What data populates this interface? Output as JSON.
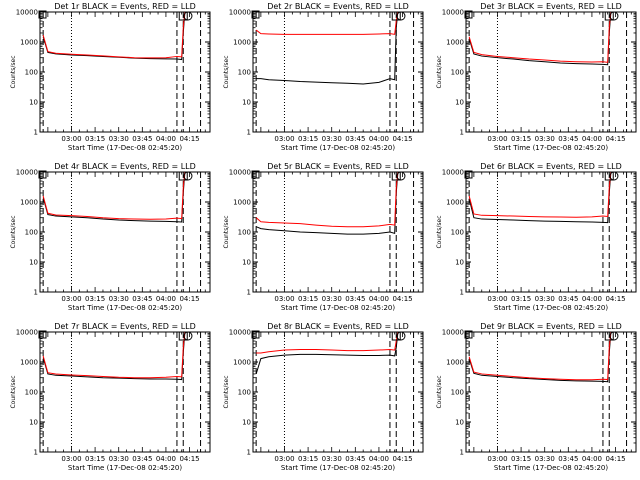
{
  "figure": {
    "xlabel": "Start Time (17-Dec-08 02:45:20)",
    "ylabel": "Counts/sec"
  },
  "chart_data": [
    {
      "type": "line",
      "title": "Det 1r BLACK = Events, RED = LLD",
      "xlabel": "Start Time (17-Dec-08 02:45:20)",
      "ylabel": "Counts/sec",
      "y_scale": "log",
      "ylim": [
        1,
        10000
      ],
      "yticks": [
        "1",
        "10",
        "100",
        "1000",
        "10000"
      ],
      "xtick_labels": [
        "03:00",
        "03:15",
        "03:30",
        "03:45",
        "04:00",
        "04:15"
      ],
      "x_range_minutes": [
        -5,
        103
      ],
      "x": [
        -3,
        0,
        5,
        15,
        25,
        35,
        45,
        55,
        65,
        75,
        82,
        85,
        86,
        87
      ],
      "series": [
        {
          "name": "BLACK = Events",
          "color": "#000000",
          "values": [
            1500,
            450,
            400,
            370,
            350,
            330,
            310,
            290,
            280,
            275,
            270,
            260,
            2000,
            9000
          ]
        },
        {
          "name": "RED = LLD",
          "color": "#ff0000",
          "values": [
            1700,
            480,
            420,
            390,
            370,
            345,
            320,
            300,
            295,
            300,
            330,
            320,
            3000,
            10000
          ]
        }
      ],
      "vlines_dotted": [
        15
      ],
      "vlines_dashed": [
        -3,
        82,
        86,
        97
      ],
      "markers": [
        "square",
        "circle"
      ]
    },
    {
      "type": "line",
      "title": "Det 2r BLACK = Events, RED = LLD",
      "xlabel": "Start Time (17-Dec-08 02:45:20)",
      "ylabel": "Counts/sec",
      "y_scale": "log",
      "ylim": [
        1,
        10000
      ],
      "yticks": [
        "1",
        "10",
        "100",
        "1000",
        "10000"
      ],
      "xtick_labels": [
        "03:00",
        "03:15",
        "03:30",
        "03:45",
        "04:00",
        "04:15"
      ],
      "x_range_minutes": [
        -5,
        103
      ],
      "x": [
        -3,
        0,
        5,
        15,
        25,
        35,
        45,
        55,
        65,
        75,
        82,
        85,
        86,
        87
      ],
      "series": [
        {
          "name": "BLACK = Events",
          "color": "#000000",
          "values": [
            60,
            60,
            55,
            52,
            48,
            46,
            44,
            42,
            40,
            45,
            60,
            55,
            3000,
            10000
          ]
        },
        {
          "name": "RED = LLD",
          "color": "#ff0000",
          "values": [
            2500,
            1900,
            1850,
            1800,
            1800,
            1800,
            1800,
            1800,
            1800,
            1850,
            1900,
            1800,
            5000,
            10000
          ]
        }
      ],
      "vlines_dotted": [
        15
      ],
      "vlines_dashed": [
        -3,
        82,
        86,
        97
      ],
      "markers": [
        "square",
        "circle"
      ]
    },
    {
      "type": "line",
      "title": "Det 3r BLACK = Events, RED = LLD",
      "xlabel": "Start Time (17-Dec-08 02:45:20)",
      "ylabel": "Counts/sec",
      "y_scale": "log",
      "ylim": [
        1,
        10000
      ],
      "yticks": [
        "1",
        "10",
        "100",
        "1000",
        "10000"
      ],
      "xtick_labels": [
        "03:00",
        "03:15",
        "03:30",
        "03:45",
        "04:00",
        "04:15"
      ],
      "x_range_minutes": [
        -5,
        103
      ],
      "x": [
        -3,
        0,
        5,
        15,
        25,
        35,
        45,
        55,
        65,
        75,
        82,
        85,
        86,
        87
      ],
      "series": [
        {
          "name": "BLACK = Events",
          "color": "#000000",
          "values": [
            1300,
            400,
            340,
            300,
            270,
            240,
            220,
            200,
            190,
            185,
            180,
            175,
            2000,
            9000
          ]
        },
        {
          "name": "RED = LLD",
          "color": "#ff0000",
          "values": [
            1500,
            450,
            380,
            330,
            300,
            270,
            250,
            230,
            220,
            215,
            220,
            210,
            3000,
            10000
          ]
        }
      ],
      "vlines_dotted": [
        15
      ],
      "vlines_dashed": [
        -3,
        82,
        86,
        97
      ],
      "markers": [
        "square",
        "circle"
      ]
    },
    {
      "type": "line",
      "title": "Det 4r BLACK = Events, RED = LLD",
      "xlabel": "Start Time (17-Dec-08 02:45:20)",
      "ylabel": "Counts/sec",
      "y_scale": "log",
      "ylim": [
        1,
        10000
      ],
      "yticks": [
        "1",
        "10",
        "100",
        "1000",
        "10000"
      ],
      "xtick_labels": [
        "03:00",
        "03:15",
        "03:30",
        "03:45",
        "04:00",
        "04:15"
      ],
      "x_range_minutes": [
        -5,
        103
      ],
      "x": [
        -3,
        0,
        5,
        15,
        25,
        35,
        45,
        55,
        65,
        75,
        82,
        85,
        86,
        87
      ],
      "series": [
        {
          "name": "BLACK = Events",
          "color": "#000000",
          "values": [
            1400,
            380,
            340,
            320,
            300,
            270,
            250,
            240,
            230,
            225,
            220,
            215,
            2000,
            9000
          ]
        },
        {
          "name": "RED = LLD",
          "color": "#ff0000",
          "values": [
            1600,
            420,
            370,
            350,
            330,
            300,
            280,
            270,
            265,
            270,
            290,
            280,
            3000,
            10000
          ]
        }
      ],
      "vlines_dotted": [
        15
      ],
      "vlines_dashed": [
        -3,
        82,
        86,
        97
      ],
      "markers": [
        "square",
        "circle"
      ]
    },
    {
      "type": "line",
      "title": "Det 5r BLACK = Events, RED = LLD",
      "xlabel": "Start Time (17-Dec-08 02:45:20)",
      "ylabel": "Counts/sec",
      "y_scale": "log",
      "ylim": [
        1,
        10000
      ],
      "yticks": [
        "1",
        "10",
        "100",
        "1000",
        "10000"
      ],
      "xtick_labels": [
        "03:00",
        "03:15",
        "03:30",
        "03:45",
        "04:00",
        "04:15"
      ],
      "x_range_minutes": [
        -5,
        103
      ],
      "x": [
        -3,
        0,
        5,
        15,
        25,
        35,
        45,
        55,
        65,
        75,
        82,
        85,
        86,
        87
      ],
      "series": [
        {
          "name": "BLACK = Events",
          "color": "#000000",
          "values": [
            150,
            130,
            120,
            110,
            100,
            95,
            90,
            85,
            85,
            90,
            100,
            90,
            2000,
            9000
          ]
        },
        {
          "name": "RED = LLD",
          "color": "#ff0000",
          "values": [
            300,
            220,
            210,
            200,
            190,
            170,
            155,
            150,
            150,
            160,
            180,
            170,
            3000,
            10000
          ]
        }
      ],
      "vlines_dotted": [
        15
      ],
      "vlines_dashed": [
        -3,
        82,
        86,
        97
      ],
      "markers": [
        "square",
        "circle"
      ]
    },
    {
      "type": "line",
      "title": "Det 6r BLACK = Events, RED = LLD",
      "xlabel": "Start Time (17-Dec-08 02:45:20)",
      "ylabel": "Counts/sec",
      "y_scale": "log",
      "ylim": [
        1,
        10000
      ],
      "yticks": [
        "1",
        "10",
        "100",
        "1000",
        "10000"
      ],
      "xtick_labels": [
        "03:00",
        "03:15",
        "03:30",
        "03:45",
        "04:00",
        "04:15"
      ],
      "x_range_minutes": [
        -5,
        103
      ],
      "x": [
        -3,
        0,
        5,
        15,
        25,
        35,
        45,
        55,
        65,
        75,
        82,
        85,
        86,
        87
      ],
      "series": [
        {
          "name": "BLACK = Events",
          "color": "#000000",
          "values": [
            1300,
            300,
            270,
            260,
            250,
            240,
            230,
            225,
            220,
            215,
            210,
            205,
            2000,
            9000
          ]
        },
        {
          "name": "RED = LLD",
          "color": "#ff0000",
          "values": [
            1600,
            400,
            360,
            350,
            340,
            330,
            320,
            315,
            310,
            320,
            340,
            330,
            3000,
            10000
          ]
        }
      ],
      "vlines_dotted": [
        15
      ],
      "vlines_dashed": [
        -3,
        82,
        86,
        97
      ],
      "markers": [
        "square",
        "circle"
      ]
    },
    {
      "type": "line",
      "title": "Det 7r BLACK = Events, RED = LLD",
      "xlabel": "Start Time (17-Dec-08 02:45:20)",
      "ylabel": "Counts/sec",
      "y_scale": "log",
      "ylim": [
        1,
        10000
      ],
      "yticks": [
        "1",
        "10",
        "100",
        "1000",
        "10000"
      ],
      "xtick_labels": [
        "03:00",
        "03:15",
        "03:30",
        "03:45",
        "04:00",
        "04:15"
      ],
      "x_range_minutes": [
        -5,
        103
      ],
      "x": [
        -3,
        0,
        5,
        15,
        25,
        35,
        45,
        55,
        65,
        75,
        82,
        85,
        86,
        87
      ],
      "series": [
        {
          "name": "BLACK = Events",
          "color": "#000000",
          "values": [
            1400,
            400,
            360,
            340,
            320,
            300,
            290,
            280,
            270,
            270,
            265,
            260,
            2000,
            9000
          ]
        },
        {
          "name": "RED = LLD",
          "color": "#ff0000",
          "values": [
            1600,
            440,
            400,
            370,
            350,
            330,
            310,
            300,
            300,
            310,
            330,
            320,
            3000,
            10000
          ]
        }
      ],
      "vlines_dotted": [
        15
      ],
      "vlines_dashed": [
        -3,
        82,
        86,
        97
      ],
      "markers": [
        "square",
        "circle"
      ]
    },
    {
      "type": "line",
      "title": "Det 8r BLACK = Events, RED = LLD",
      "xlabel": "Start Time (17-Dec-08 02:45:20)",
      "ylabel": "Counts/sec",
      "y_scale": "log",
      "ylim": [
        1,
        10000
      ],
      "yticks": [
        "1",
        "10",
        "100",
        "1000",
        "10000"
      ],
      "xtick_labels": [
        "03:00",
        "03:15",
        "03:30",
        "03:45",
        "04:00",
        "04:15"
      ],
      "x_range_minutes": [
        -5,
        103
      ],
      "x": [
        -3,
        0,
        5,
        15,
        25,
        35,
        45,
        55,
        65,
        75,
        82,
        85,
        86,
        87
      ],
      "series": [
        {
          "name": "BLACK = Events",
          "color": "#000000",
          "values": [
            400,
            1300,
            1500,
            1700,
            1800,
            1800,
            1750,
            1700,
            1650,
            1650,
            1700,
            1600,
            3000,
            9000
          ]
        },
        {
          "name": "RED = LLD",
          "color": "#ff0000",
          "values": [
            2000,
            2000,
            2200,
            2500,
            2600,
            2600,
            2500,
            2400,
            2400,
            2500,
            2600,
            2500,
            5000,
            10000
          ]
        }
      ],
      "vlines_dotted": [
        15
      ],
      "vlines_dashed": [
        -3,
        82,
        86,
        97
      ],
      "markers": [
        "square",
        "circle"
      ]
    },
    {
      "type": "line",
      "title": "Det 9r BLACK = Events, RED = LLD",
      "xlabel": "Start Time (17-Dec-08 02:45:20)",
      "ylabel": "Counts/sec",
      "y_scale": "log",
      "ylim": [
        1,
        10000
      ],
      "yticks": [
        "1",
        "10",
        "100",
        "1000",
        "10000"
      ],
      "xtick_labels": [
        "03:00",
        "03:15",
        "03:30",
        "03:45",
        "04:00",
        "04:15"
      ],
      "x_range_minutes": [
        -5,
        103
      ],
      "x": [
        -3,
        0,
        5,
        15,
        25,
        35,
        45,
        55,
        65,
        75,
        82,
        85,
        86,
        87
      ],
      "series": [
        {
          "name": "BLACK = Events",
          "color": "#000000",
          "values": [
            1300,
            420,
            360,
            330,
            300,
            280,
            260,
            245,
            235,
            230,
            225,
            220,
            2000,
            9000
          ]
        },
        {
          "name": "RED = LLD",
          "color": "#ff0000",
          "values": [
            1500,
            460,
            400,
            360,
            330,
            300,
            280,
            265,
            255,
            255,
            265,
            260,
            3000,
            10000
          ]
        }
      ],
      "vlines_dotted": [
        15
      ],
      "vlines_dashed": [
        -3,
        82,
        86,
        97
      ],
      "markers": [
        "square",
        "circle"
      ]
    }
  ]
}
